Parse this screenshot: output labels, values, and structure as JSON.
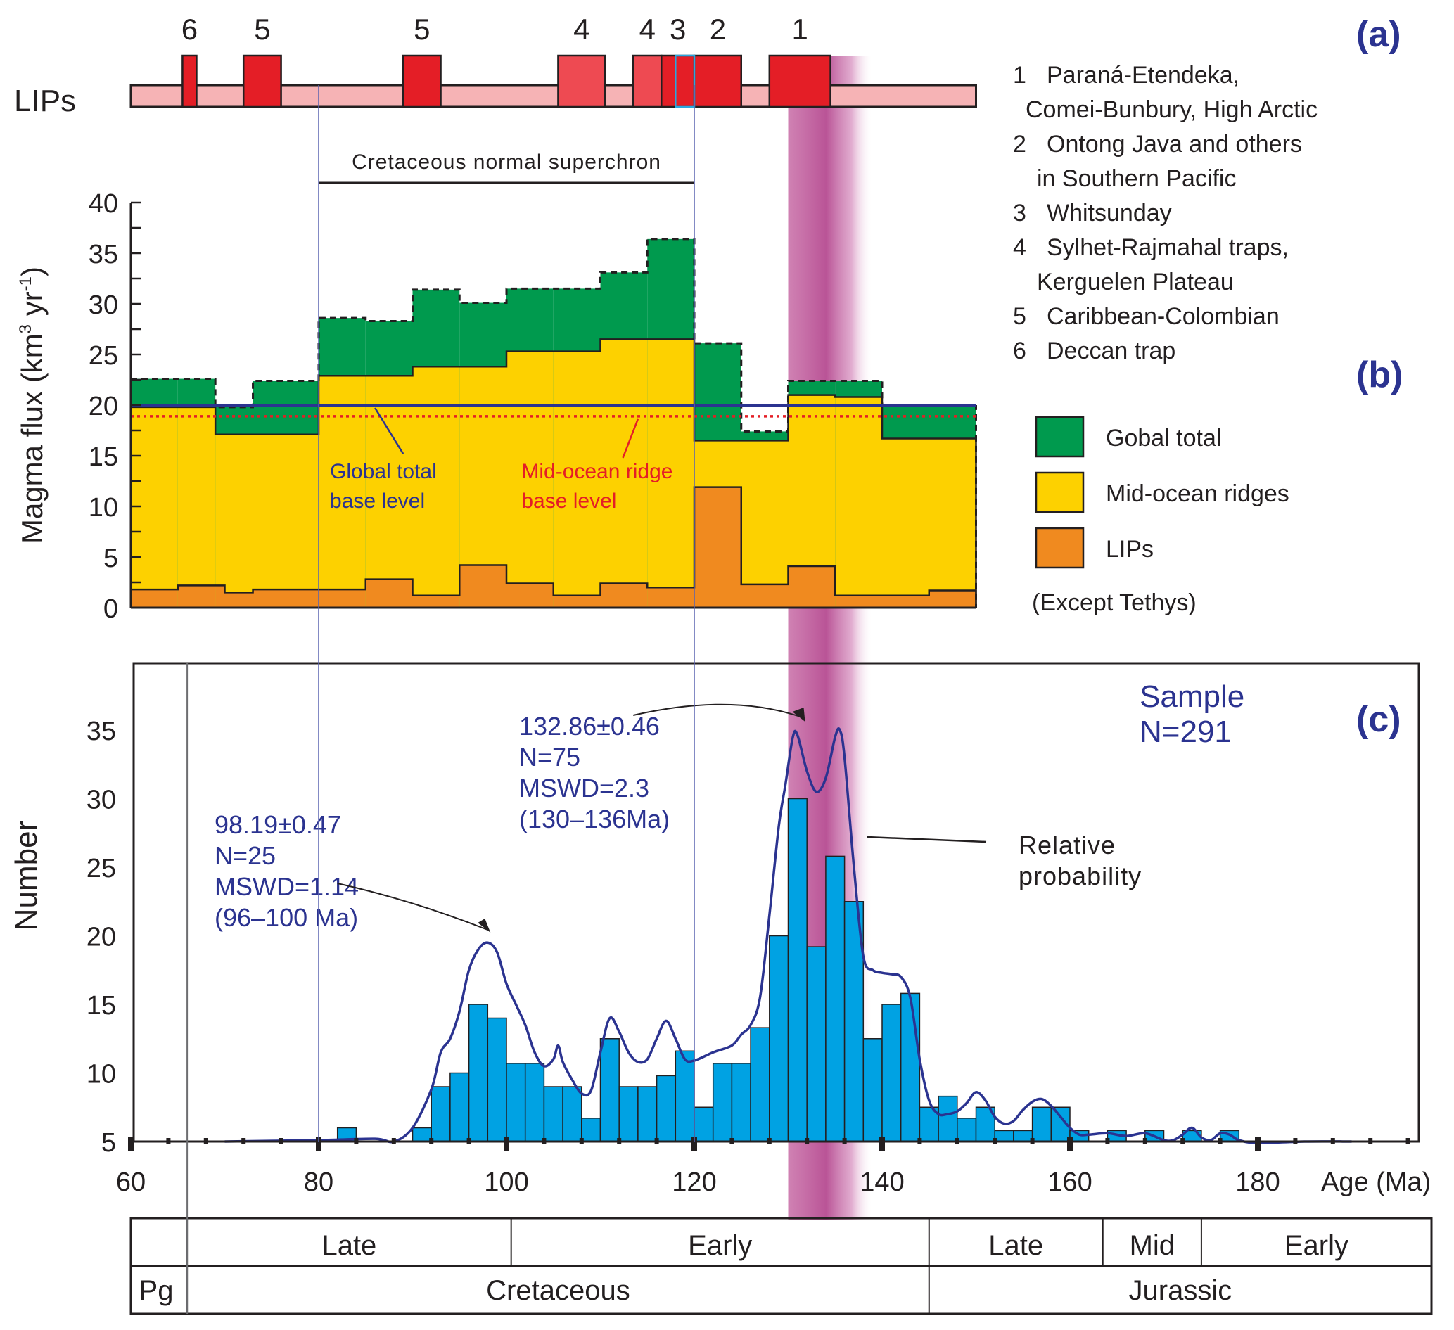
{
  "chart_data": [
    {
      "panel": "(a)",
      "type": "timeline",
      "row_label": "LIPs",
      "xlim": [
        60,
        150
      ],
      "events": [
        {
          "id": "6",
          "start": 65.5,
          "end": 67.0
        },
        {
          "id": "5",
          "start": 72.0,
          "end": 76.0
        },
        {
          "id": "5",
          "start": 89.0,
          "end": 93.0
        },
        {
          "id": "4",
          "start": 105.5,
          "end": 110.5
        },
        {
          "id": "4",
          "start": 113.5,
          "end": 116.5
        },
        {
          "id": "3",
          "start": 116.5,
          "end": 120.0
        },
        {
          "id": "2",
          "start": 120.0,
          "end": 125.0
        },
        {
          "id": "1",
          "start": 128.0,
          "end": 134.5
        }
      ],
      "legend": [
        {
          "num": "1",
          "text": "Paraná-Etendeka,",
          "text2": "Comei-Bunbury, High Arctic"
        },
        {
          "num": "2",
          "text": "Ontong Java and others",
          "text2": "in Southern Pacific"
        },
        {
          "num": "3",
          "text": "Whitsunday",
          "text2": ""
        },
        {
          "num": "4",
          "text": "Sylhet-Rajmahal traps,",
          "text2": "Kerguelen Plateau"
        },
        {
          "num": "5",
          "text": "Caribbean-Colombian",
          "text2": ""
        },
        {
          "num": "6",
          "text": "Deccan trap",
          "text2": ""
        }
      ],
      "colors": {
        "band": "#f6b3b5",
        "event": "#e41e26",
        "event_light": "#ee4a52"
      }
    },
    {
      "panel": "(b)",
      "type": "area",
      "ylabel": "Magma flux  (km³ yr⁻¹)",
      "ylabel_main": "Magma flux  (km",
      "ylabel_sup1": "3",
      "ylabel_mid": " yr",
      "ylabel_sup2": "-1",
      "ylabel_end": ")",
      "ylim": [
        0,
        40
      ],
      "yticks": [
        0,
        5,
        10,
        15,
        20,
        25,
        30,
        35,
        40
      ],
      "xlim": [
        60,
        150
      ],
      "superchron_label": "Cretaceous normal superchron",
      "superchron_range": [
        80,
        120
      ],
      "global_base_level": 20,
      "ridge_base_level": 18.9,
      "global_base_label": [
        "Global total",
        "base level"
      ],
      "ridge_base_label": [
        "Mid-ocean ridge",
        "base level"
      ],
      "steps": [
        {
          "start": 60,
          "end": 65,
          "lips": 1.8,
          "ridges": 19.8,
          "total": 22.6
        },
        {
          "start": 65,
          "end": 69,
          "lips": 2.2,
          "ridges": 19.8,
          "total": 22.6
        },
        {
          "start": 69,
          "end": 70,
          "lips": 2.2,
          "ridges": 17.1,
          "total": 19.8
        },
        {
          "start": 70,
          "end": 73,
          "lips": 1.5,
          "ridges": 17.1,
          "total": 19.8
        },
        {
          "start": 73,
          "end": 75,
          "lips": 1.8,
          "ridges": 17.1,
          "total": 22.4
        },
        {
          "start": 75,
          "end": 80,
          "lips": 1.8,
          "ridges": 17.1,
          "total": 22.4
        },
        {
          "start": 80,
          "end": 85,
          "lips": 1.8,
          "ridges": 22.9,
          "total": 28.6
        },
        {
          "start": 85,
          "end": 90,
          "lips": 2.8,
          "ridges": 22.9,
          "total": 28.3
        },
        {
          "start": 90,
          "end": 95,
          "lips": 1.2,
          "ridges": 23.8,
          "total": 31.4
        },
        {
          "start": 95,
          "end": 100,
          "lips": 4.2,
          "ridges": 23.8,
          "total": 30.1
        },
        {
          "start": 100,
          "end": 105,
          "lips": 2.4,
          "ridges": 25.3,
          "total": 31.5
        },
        {
          "start": 105,
          "end": 110,
          "lips": 1.2,
          "ridges": 25.3,
          "total": 31.5
        },
        {
          "start": 110,
          "end": 115,
          "lips": 2.4,
          "ridges": 26.5,
          "total": 33.1
        },
        {
          "start": 115,
          "end": 120,
          "lips": 2.0,
          "ridges": 26.5,
          "total": 36.4
        },
        {
          "start": 120,
          "end": 125,
          "lips": 11.9,
          "ridges": 16.5,
          "total": 26.1
        },
        {
          "start": 125,
          "end": 130,
          "lips": 2.3,
          "ridges": 16.5,
          "total": 17.4
        },
        {
          "start": 130,
          "end": 135,
          "lips": 4.1,
          "ridges": 21.0,
          "total": 22.4
        },
        {
          "start": 135,
          "end": 140,
          "lips": 1.2,
          "ridges": 20.8,
          "total": 22.4
        },
        {
          "start": 140,
          "end": 145,
          "lips": 1.2,
          "ridges": 16.7,
          "total": 19.9
        },
        {
          "start": 145,
          "end": 150,
          "lips": 1.7,
          "ridges": 16.7,
          "total": 19.9
        }
      ],
      "legend": [
        {
          "label": "Gobal total",
          "color": "#009a4e"
        },
        {
          "label": "Mid-ocean ridges",
          "color": "#fdd100"
        },
        {
          "label": "LIPs",
          "color": "#f08a1f"
        }
      ],
      "legend_note": "(Except  Tethys)"
    },
    {
      "panel": "(c)",
      "type": "bar",
      "ylabel": "Number",
      "xlabel": "Age (Ma)",
      "xlim": [
        60,
        197
      ],
      "ylim": [
        5,
        40
      ],
      "yticks": [
        5,
        10,
        15,
        20,
        25,
        30,
        35
      ],
      "xticks": [
        60,
        80,
        100,
        120,
        140,
        160,
        180
      ],
      "bin_width": 2,
      "bins": [
        {
          "start": 82,
          "value": 6
        },
        {
          "start": 90,
          "value": 6
        },
        {
          "start": 92,
          "value": 9
        },
        {
          "start": 94,
          "value": 10
        },
        {
          "start": 96,
          "value": 15
        },
        {
          "start": 98,
          "value": 14
        },
        {
          "start": 100,
          "value": 10.7
        },
        {
          "start": 102,
          "value": 10.7
        },
        {
          "start": 104,
          "value": 9
        },
        {
          "start": 106,
          "value": 9
        },
        {
          "start": 108,
          "value": 6.7
        },
        {
          "start": 110,
          "value": 12.5
        },
        {
          "start": 112,
          "value": 9
        },
        {
          "start": 114,
          "value": 9
        },
        {
          "start": 116,
          "value": 9.8
        },
        {
          "start": 118,
          "value": 11.6
        },
        {
          "start": 120,
          "value": 7.5
        },
        {
          "start": 122,
          "value": 10.7
        },
        {
          "start": 124,
          "value": 10.7
        },
        {
          "start": 126,
          "value": 13.3
        },
        {
          "start": 128,
          "value": 20
        },
        {
          "start": 130,
          "value": 30
        },
        {
          "start": 132,
          "value": 19.2
        },
        {
          "start": 134,
          "value": 25.8
        },
        {
          "start": 136,
          "value": 22.5
        },
        {
          "start": 138,
          "value": 12.5
        },
        {
          "start": 140,
          "value": 15
        },
        {
          "start": 142,
          "value": 15.8
        },
        {
          "start": 144,
          "value": 7.5
        },
        {
          "start": 146,
          "value": 8.3
        },
        {
          "start": 148,
          "value": 6.7
        },
        {
          "start": 150,
          "value": 7.5
        },
        {
          "start": 152,
          "value": 5.8
        },
        {
          "start": 154,
          "value": 5.8
        },
        {
          "start": 156,
          "value": 7.5
        },
        {
          "start": 158,
          "value": 7.5
        },
        {
          "start": 160,
          "value": 5.8
        },
        {
          "start": 164,
          "value": 5.8
        },
        {
          "start": 168,
          "value": 5.8
        },
        {
          "start": 172,
          "value": 5.8
        },
        {
          "start": 176,
          "value": 5.8
        }
      ],
      "probability_curve": [
        [
          70,
          5.0
        ],
        [
          80,
          5.1
        ],
        [
          86,
          5.2
        ],
        [
          88,
          5.0
        ],
        [
          90,
          6.0
        ],
        [
          92,
          8.8
        ],
        [
          93,
          11.5
        ],
        [
          94,
          12.5
        ],
        [
          95,
          14.5
        ],
        [
          96,
          17.5
        ],
        [
          97,
          19.0
        ],
        [
          98,
          19.5
        ],
        [
          99,
          18.8
        ],
        [
          100,
          16.5
        ],
        [
          101,
          15.0
        ],
        [
          102,
          13.5
        ],
        [
          103,
          11.5
        ],
        [
          104,
          10.5
        ],
        [
          105,
          11.0
        ],
        [
          105.5,
          12.0
        ],
        [
          106,
          10.8
        ],
        [
          107,
          9.5
        ],
        [
          108,
          8.5
        ],
        [
          109,
          8.7
        ],
        [
          110,
          11.5
        ],
        [
          111,
          14.0
        ],
        [
          112,
          13.0
        ],
        [
          113,
          11.5
        ],
        [
          114,
          10.8
        ],
        [
          115,
          11.0
        ],
        [
          116,
          12.5
        ],
        [
          117,
          13.8
        ],
        [
          118,
          12.5
        ],
        [
          119,
          11.0
        ],
        [
          120,
          10.9
        ],
        [
          122,
          11.5
        ],
        [
          124,
          12.0
        ],
        [
          125,
          12.8
        ],
        [
          126,
          13.5
        ],
        [
          127,
          15.5
        ],
        [
          128,
          21.5
        ],
        [
          129,
          28.0
        ],
        [
          129.7,
          31.0
        ],
        [
          130.5,
          34.5
        ],
        [
          131,
          34.6
        ],
        [
          132,
          32.0
        ],
        [
          133,
          30.5
        ],
        [
          134,
          31.5
        ],
        [
          135,
          34.5
        ],
        [
          135.5,
          35.0
        ],
        [
          136,
          33.0
        ],
        [
          137,
          25.0
        ],
        [
          138,
          18.5
        ],
        [
          139,
          17.5
        ],
        [
          140,
          17.3
        ],
        [
          141,
          17.2
        ],
        [
          142,
          17.0
        ],
        [
          143,
          15.5
        ],
        [
          144,
          11.0
        ],
        [
          145,
          8.0
        ],
        [
          146,
          7.0
        ],
        [
          147,
          7.0
        ],
        [
          148,
          7.2
        ],
        [
          149,
          7.8
        ],
        [
          150,
          8.6
        ],
        [
          151,
          8.0
        ],
        [
          152,
          6.8
        ],
        [
          153,
          6.3
        ],
        [
          154,
          6.5
        ],
        [
          155,
          7.3
        ],
        [
          156,
          7.9
        ],
        [
          157,
          8.1
        ],
        [
          158,
          7.6
        ],
        [
          159,
          6.8
        ],
        [
          160,
          6.0
        ],
        [
          161,
          5.5
        ],
        [
          162,
          5.5
        ],
        [
          164,
          5.6
        ],
        [
          166,
          5.4
        ],
        [
          168,
          5.6
        ],
        [
          170,
          5.1
        ],
        [
          171,
          5.1
        ],
        [
          172,
          5.5
        ],
        [
          173,
          6.0
        ],
        [
          174,
          5.3
        ],
        [
          175,
          5.1
        ],
        [
          176,
          5.6
        ],
        [
          177,
          5.5
        ],
        [
          178,
          5.1
        ],
        [
          180,
          4.9
        ],
        [
          185,
          5.0
        ],
        [
          190,
          5.0
        ]
      ],
      "annotations": {
        "young": {
          "lines": [
            "98.19±0.47",
            "N=25",
            "MSWD=1.14",
            "(96–100 Ma)"
          ],
          "target_age": 98
        },
        "old": {
          "lines": [
            "132.86±0.46",
            "N=75",
            "MSWD=2.3",
            "(130–136Ma)"
          ],
          "target_age": 133
        },
        "sample": [
          "Sample",
          "N=291"
        ],
        "curve_label": [
          "Relative",
          "probability"
        ]
      },
      "highlight_band": [
        130,
        139
      ],
      "colors": {
        "bar": "#00a2e3",
        "curve": "#2b3390",
        "band": "#c0589a"
      }
    }
  ],
  "timescale": {
    "epochs": [
      {
        "label": "",
        "start": 60,
        "end": 66
      },
      {
        "label": "Late",
        "start": 66,
        "end": 100.5
      },
      {
        "label": "Early",
        "start": 100.5,
        "end": 145
      },
      {
        "label": "Late",
        "start": 145,
        "end": 163.5
      },
      {
        "label": "Mid",
        "start": 163.5,
        "end": 174
      },
      {
        "label": "Early",
        "start": 174,
        "end": 201
      }
    ],
    "periods": [
      {
        "label": "Pg",
        "start": 60,
        "end": 66
      },
      {
        "label": "Cretaceous",
        "start": 66,
        "end": 145
      },
      {
        "label": "Jurassic",
        "start": 145,
        "end": 201
      }
    ]
  },
  "labels": {
    "a": "(a)",
    "b": "(b)",
    "c": "(c)"
  },
  "reference_lines_ma": [
    80,
    120
  ]
}
